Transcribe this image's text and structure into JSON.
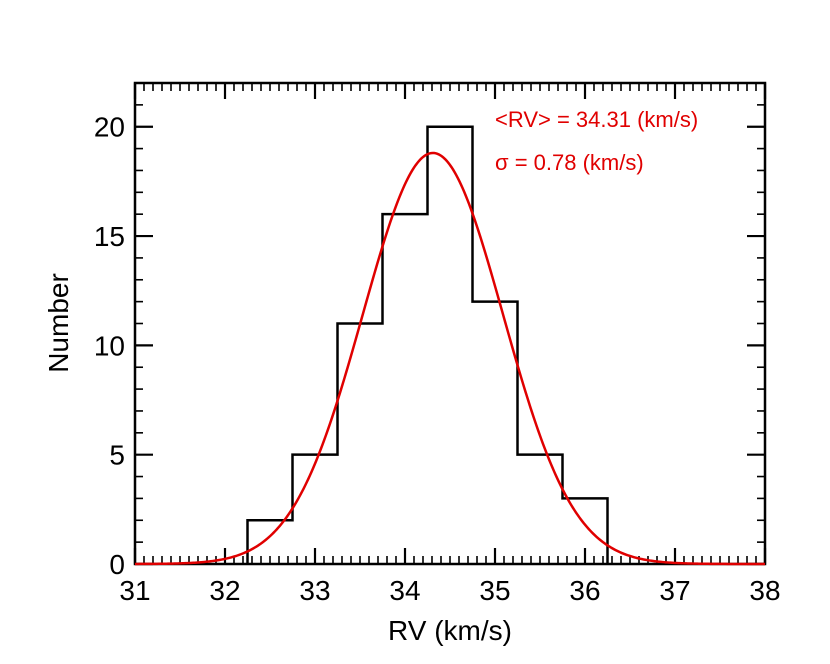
{
  "chart_data": {
    "type": "histogram",
    "title": "",
    "xlabel": "RV (km/s)",
    "ylabel": "Number",
    "xlim": [
      31,
      38
    ],
    "ylim": [
      0,
      22
    ],
    "x_ticks": [
      31,
      32,
      33,
      34,
      35,
      36,
      37,
      38
    ],
    "y_ticks": [
      0,
      5,
      10,
      15,
      20
    ],
    "bin_width": 0.5,
    "bins": [
      {
        "start": 32.25,
        "end": 32.75,
        "count": 2
      },
      {
        "start": 32.75,
        "end": 33.25,
        "count": 5
      },
      {
        "start": 33.25,
        "end": 33.75,
        "count": 11
      },
      {
        "start": 33.75,
        "end": 34.25,
        "count": 16
      },
      {
        "start": 34.25,
        "end": 34.75,
        "count": 20
      },
      {
        "start": 34.75,
        "end": 35.25,
        "count": 12
      },
      {
        "start": 35.25,
        "end": 35.75,
        "count": 5
      },
      {
        "start": 35.75,
        "end": 36.25,
        "count": 3
      }
    ],
    "fit": {
      "type": "gaussian",
      "mean": 34.31,
      "sigma": 0.78,
      "peak": 18.8,
      "color": "#e00000"
    },
    "annotations": [
      {
        "text": "<RV> = 34.31 (km/s)",
        "color": "#e00000"
      },
      {
        "text": "σ = 0.78 (km/s)",
        "color": "#e00000"
      }
    ],
    "histogram_color": "#000000"
  }
}
